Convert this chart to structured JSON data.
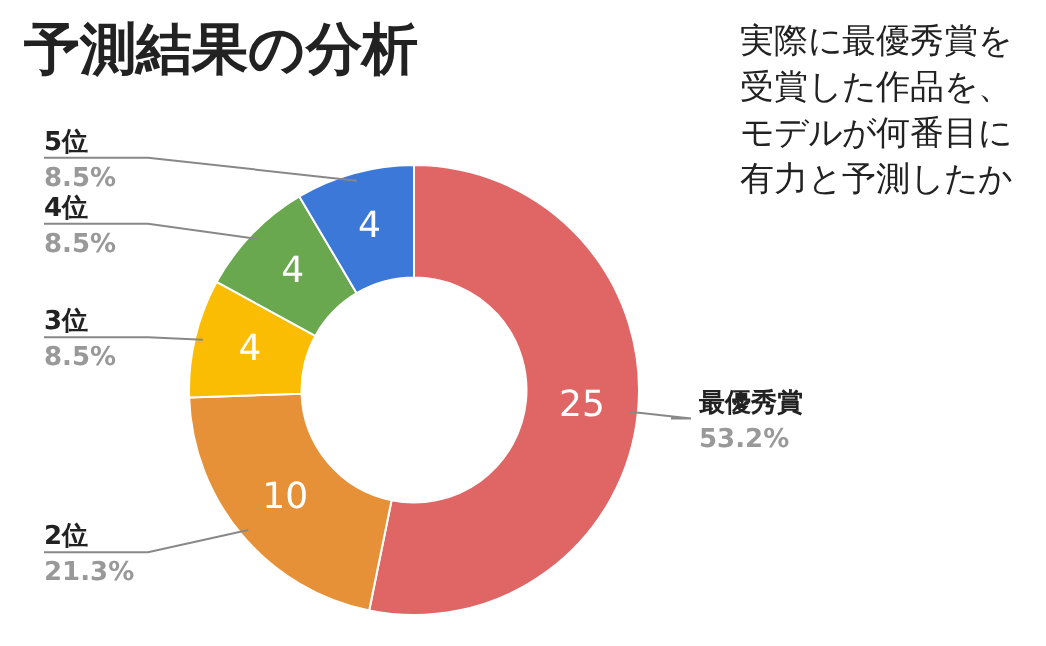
{
  "chart_data": {
    "type": "donut",
    "title": "予測結果の分析",
    "subtitle": "実際に最優秀賞を受賞した作品を、モデルが何番目に有力と予測したか",
    "categories": [
      "最優秀賞",
      "2位",
      "3位",
      "4位",
      "5位"
    ],
    "values": [
      25,
      10,
      4,
      4,
      4
    ],
    "colors": [
      "#e06666",
      "#e69138",
      "#fbbc04",
      "#6aa84f",
      "#3c78d8"
    ],
    "annotations": [
      {
        "text": "53.2%",
        "x": "最優秀賞"
      },
      {
        "text": "21.3%",
        "x": "2位"
      },
      {
        "text": "8.5%",
        "x": "3位"
      },
      {
        "text": "8.5%",
        "x": "4位"
      },
      {
        "text": "8.5%",
        "x": "5位"
      }
    ],
    "data_labels": true,
    "legend": false
  }
}
